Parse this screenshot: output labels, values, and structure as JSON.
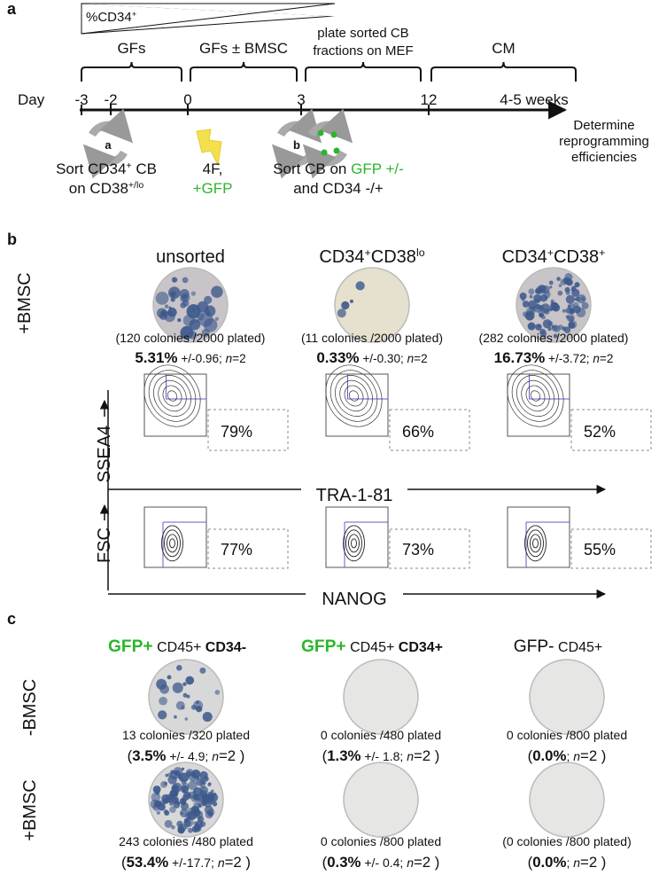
{
  "panel_a": {
    "label": "a",
    "gradient_label": [
      "%CD34",
      "+"
    ],
    "phases": [
      [
        "GFs"
      ],
      [
        "GFs ± BMSC"
      ],
      [
        "plate sorted CB",
        "fractions on MEF"
      ],
      [
        "CM"
      ]
    ],
    "timeline": {
      "label": "Day",
      "ticks": [
        "-3",
        "-2",
        "0",
        "3",
        "12",
        "4-5 weeks"
      ]
    },
    "outcome": [
      "Determine",
      "reprogramming",
      "efficiencies"
    ],
    "step_markers": [
      "a",
      "b"
    ],
    "steps": [
      {
        "line1": [
          "Sort CD34",
          "+",
          " CB"
        ],
        "line2": [
          "on CD38",
          "+/lo"
        ]
      },
      {
        "line1": [
          "4F,"
        ],
        "line2": [
          "+GFP"
        ]
      },
      {
        "line1": [
          "Sort CB on ",
          "GFP +/-"
        ],
        "line2": [
          "and CD34 -/+"
        ]
      }
    ]
  },
  "panel_b": {
    "label": "b",
    "condition": "+BMSC",
    "axes": {
      "ssea4": "SSEA4",
      "tra": "TRA-1-81",
      "fsc": "FSC",
      "nanog": "NANOG"
    },
    "columns": [
      {
        "header": [
          "unsorted"
        ],
        "colonies": "(120 colonies /2000 plated)",
        "efficiency": [
          "5.31%",
          " +/-0.96; ",
          "n",
          "=2"
        ],
        "ssea4_percent": "79%",
        "fsc_percent": "77%"
      },
      {
        "header": [
          "CD34",
          "+",
          "CD38",
          "lo"
        ],
        "colonies": "(11 colonies /2000 plated)",
        "efficiency": [
          "0.33%",
          " +/-0.30; ",
          "n",
          "=2"
        ],
        "ssea4_percent": "66%",
        "fsc_percent": "73%"
      },
      {
        "header": [
          "CD34",
          "+",
          "CD38",
          "+"
        ],
        "colonies": "(282 colonies /2000 plated)",
        "efficiency": [
          "16.73%",
          " +/-3.72; ",
          "n",
          "=2"
        ],
        "ssea4_percent": "52%",
        "fsc_percent": "55%"
      }
    ]
  },
  "panel_c": {
    "label": "c",
    "conditions": [
      "-BMSC",
      "+BMSC"
    ],
    "headers": [
      [
        "GFP+",
        " CD45+ ",
        "CD34-"
      ],
      [
        "GFP+",
        " CD45+ ",
        "CD34+"
      ],
      [
        "GFP-",
        " CD45+",
        ""
      ]
    ],
    "rows": [
      [
        {
          "colonies": "13 colonies /320 plated",
          "result": [
            "(",
            "3.5%",
            " +/- 4.9; ",
            "n",
            "=2 )"
          ]
        },
        {
          "colonies": "0 colonies /480 plated",
          "result": [
            "(",
            "1.3%",
            " +/- 1.8; ",
            "n",
            "=2 )"
          ]
        },
        {
          "colonies": "0 colonies /800 plated",
          "result": [
            "(",
            "0.0%",
            "; ",
            "n",
            "=2 )"
          ]
        }
      ],
      [
        {
          "colonies": "243 colonies /480 plated",
          "result": [
            "(",
            "53.4%",
            " +/-17.7; ",
            "n",
            "=2 )"
          ]
        },
        {
          "colonies": "0 colonies /800 plated",
          "result": [
            "(",
            "0.3%",
            " +/- 0.4; ",
            "n",
            "=2 )"
          ]
        },
        {
          "colonies": "(0 colonies /800 plated)",
          "result": [
            "(",
            "0.0%",
            "; ",
            "n",
            "=2 )"
          ]
        }
      ]
    ]
  }
}
